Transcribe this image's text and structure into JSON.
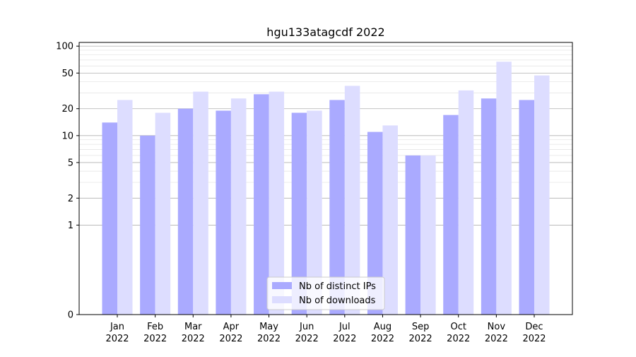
{
  "chart_data": {
    "type": "bar",
    "title": "hgu133atagcdf 2022",
    "xlabel": "",
    "ylabel": "",
    "y_scale": "symlog",
    "ylim": [
      0,
      110
    ],
    "yticks": [
      0,
      1,
      2,
      5,
      10,
      20,
      50,
      100
    ],
    "categories": [
      [
        "Jan",
        "2022"
      ],
      [
        "Feb",
        "2022"
      ],
      [
        "Mar",
        "2022"
      ],
      [
        "Apr",
        "2022"
      ],
      [
        "May",
        "2022"
      ],
      [
        "Jun",
        "2022"
      ],
      [
        "Jul",
        "2022"
      ],
      [
        "Aug",
        "2022"
      ],
      [
        "Sep",
        "2022"
      ],
      [
        "Oct",
        "2022"
      ],
      [
        "Nov",
        "2022"
      ],
      [
        "Dec",
        "2022"
      ]
    ],
    "series": [
      {
        "name": "Nb of distinct IPs",
        "color": "#aaaaff",
        "values": [
          14,
          10,
          20,
          19,
          29,
          18,
          25,
          11,
          6,
          17,
          26,
          25
        ]
      },
      {
        "name": "Nb of downloads",
        "color": "#ddddff",
        "values": [
          25,
          18,
          31,
          26,
          31,
          19,
          36,
          13,
          6,
          32,
          67,
          47
        ]
      }
    ],
    "legend_position": "lower-center",
    "grid": "horizontal"
  }
}
